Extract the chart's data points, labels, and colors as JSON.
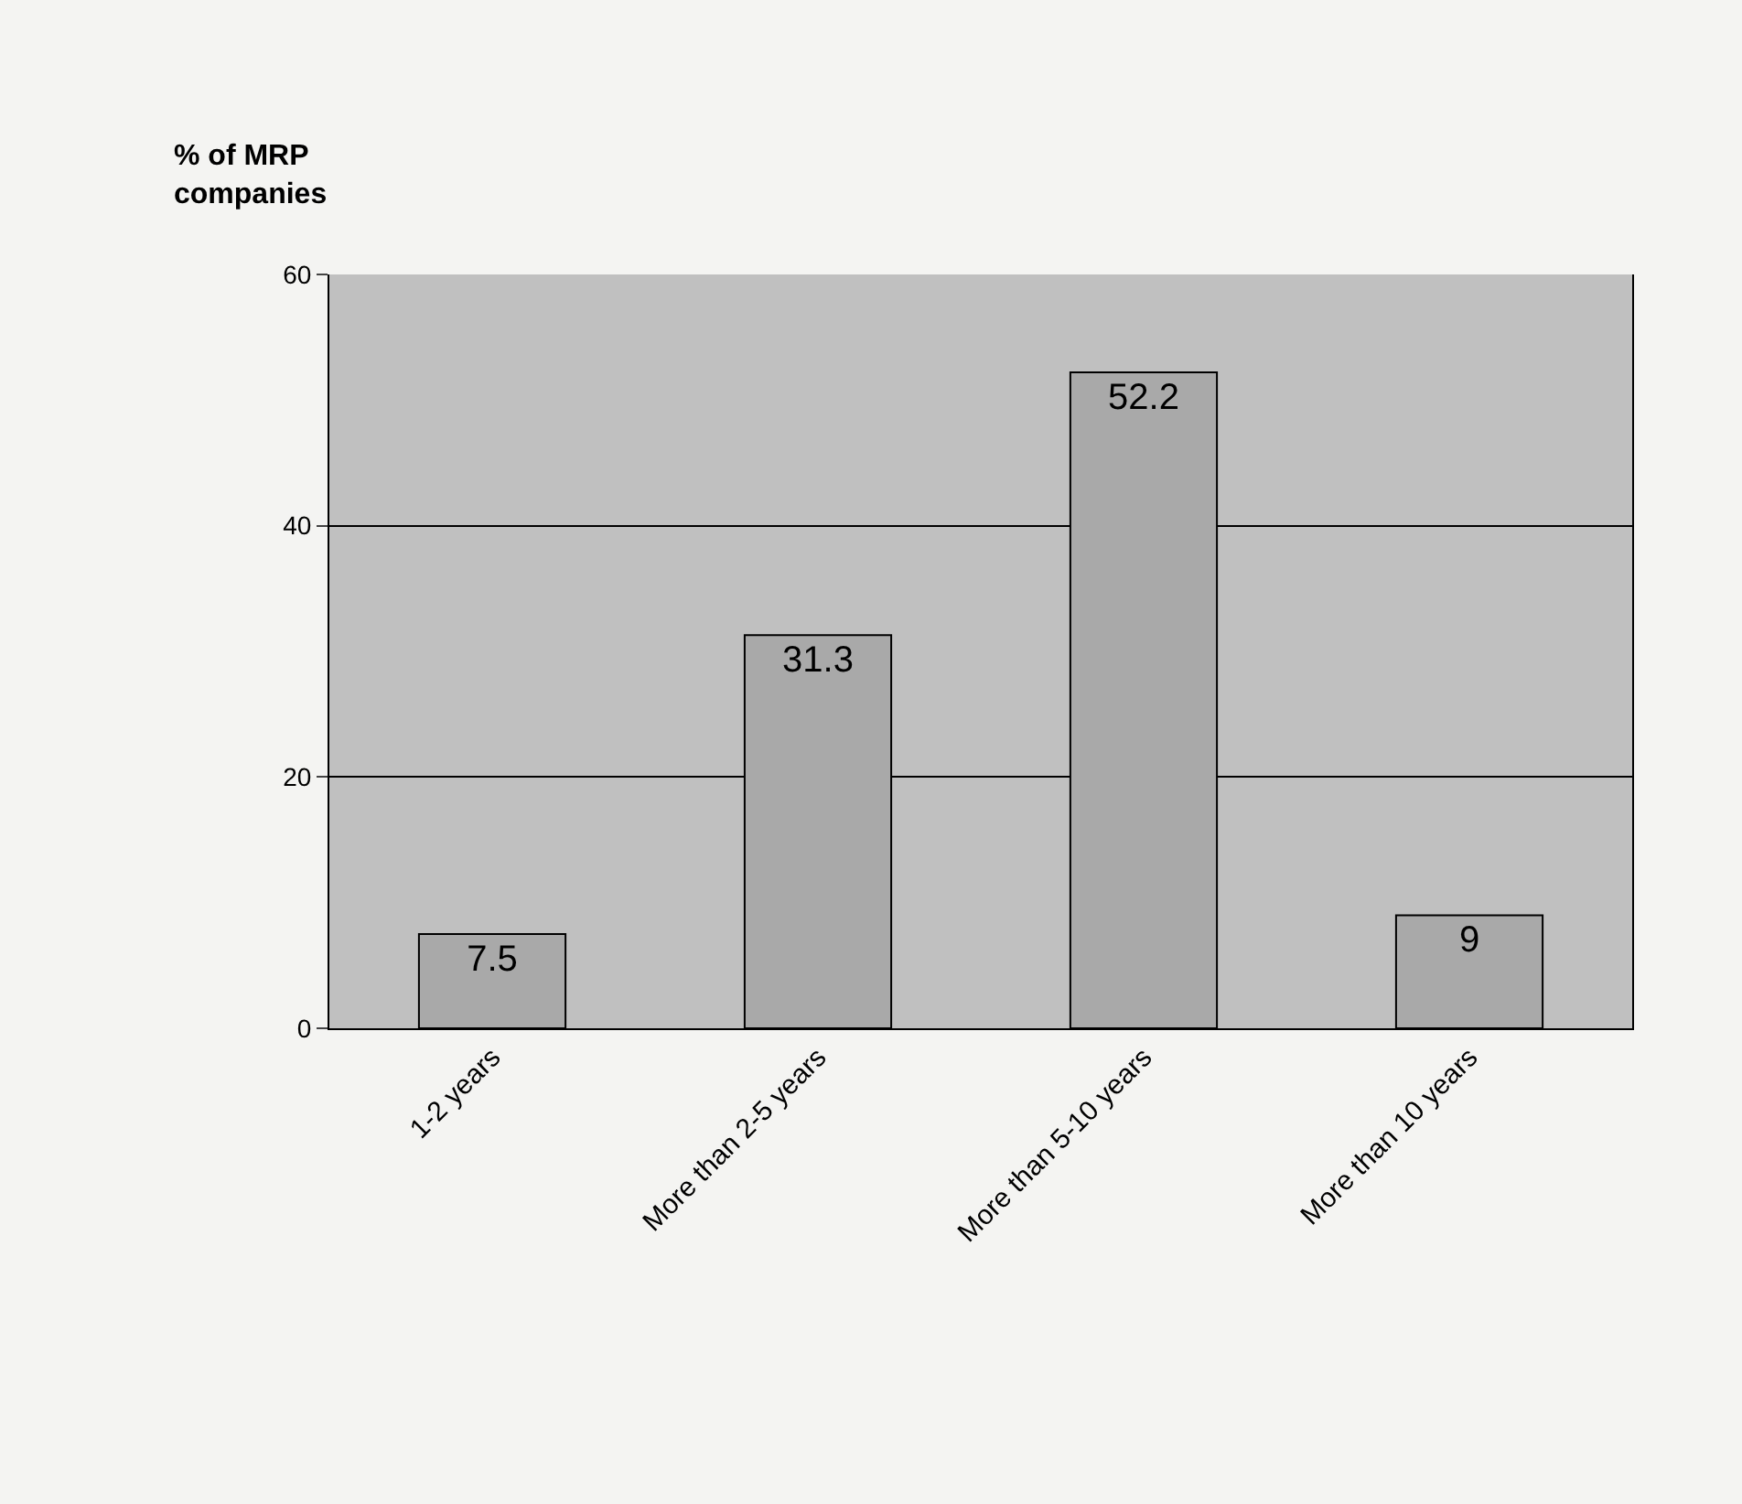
{
  "chart_data": {
    "type": "bar",
    "ylabel": "% of MRP companies",
    "categories": [
      "1-2 years",
      "More than 2-5 years",
      "More than 5-10 years",
      "More than 10 years"
    ],
    "values": [
      7.5,
      31.3,
      52.2,
      9
    ],
    "color": "#a9a9a9",
    "ylim": [
      0,
      60
    ],
    "yticks": [
      0,
      20,
      40,
      60
    ],
    "grid": "y",
    "data_labels": true,
    "legend": false
  }
}
